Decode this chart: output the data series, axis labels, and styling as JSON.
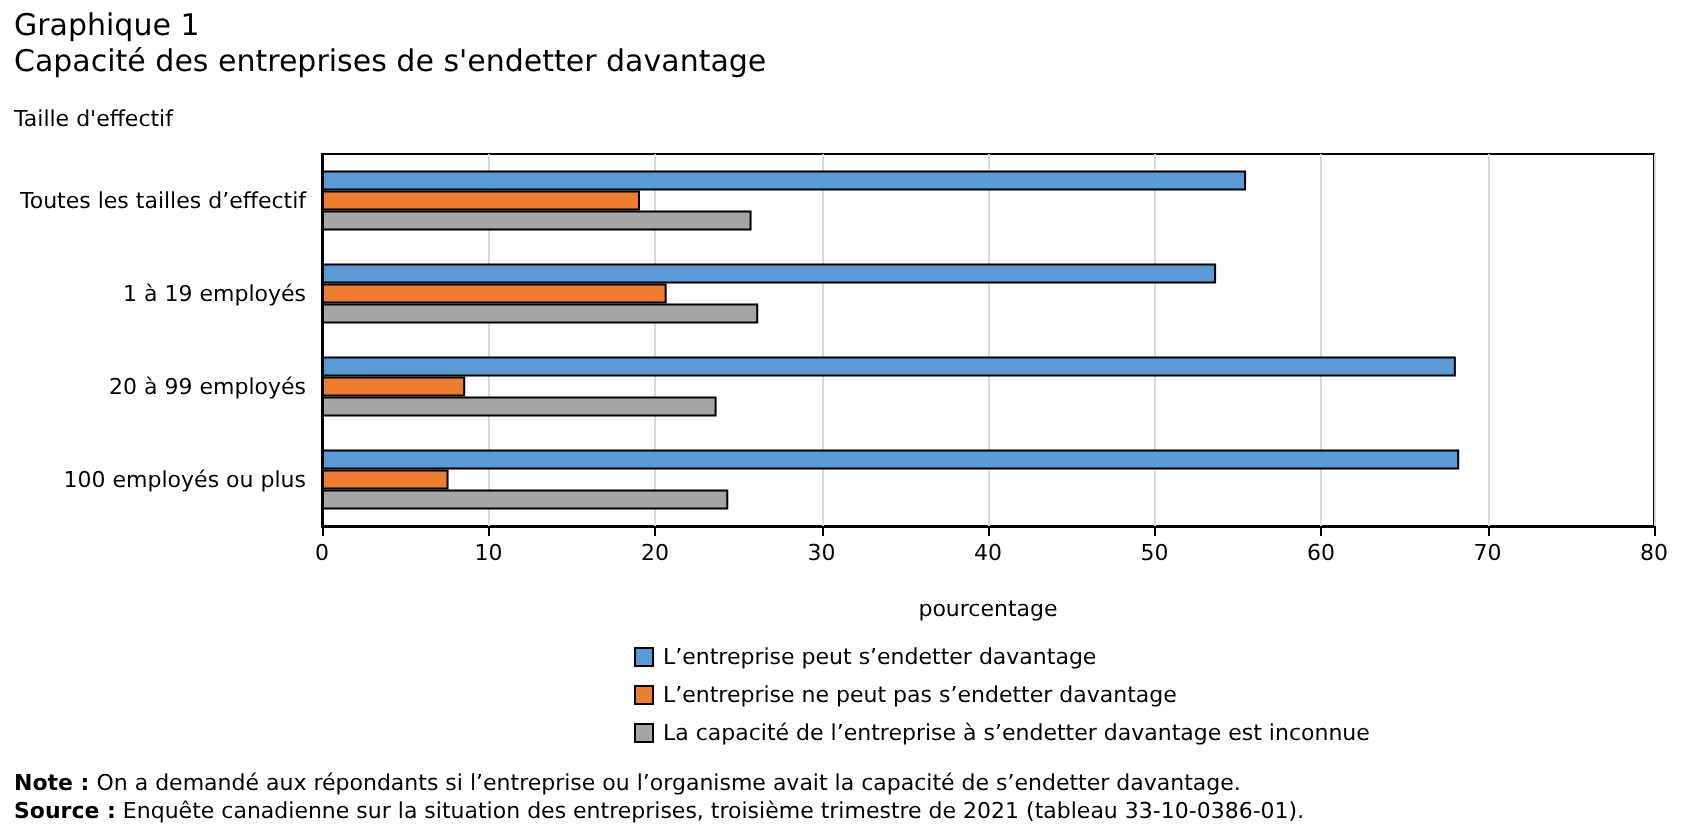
{
  "chart_data": {
    "type": "bar",
    "orientation": "horizontal",
    "title": "Graphique 1",
    "subtitle": "Capacité des entreprises de s'endetter davantage",
    "ylabel": "Taille d'effectif",
    "xlabel": "pourcentage",
    "categories": [
      "Toutes les tailles d’effectif",
      "1 à 19 employés",
      "20 à 99 employés",
      "100 employés ou plus"
    ],
    "series": [
      {
        "name": "L’entreprise peut s’endetter davantage",
        "color": "#5b9bd5",
        "values": [
          55.5,
          53.7,
          68.1,
          68.3
        ]
      },
      {
        "name": "L’entreprise ne peut pas s’endetter davantage",
        "color": "#ed7d31",
        "values": [
          19.1,
          20.7,
          8.6,
          7.6
        ]
      },
      {
        "name": "La capacité de l’entreprise à s’endetter davantage est inconnue",
        "color": "#a5a5a5",
        "values": [
          25.8,
          26.2,
          23.7,
          24.4
        ]
      }
    ],
    "xlim": [
      0,
      80
    ],
    "xticks": [
      0,
      10,
      20,
      30,
      40,
      50,
      60,
      70,
      80
    ],
    "grid": "x",
    "legend": "bottom",
    "annotations": [
      "Note : On a demandé aux répondants si l’entreprise ou l’organisme avait la capacité de s’endetter davantage.",
      "Source : Enquête canadienne sur la situation des entreprises, troisième trimestre de 2021 (tableau 33-10-0386-01)."
    ]
  }
}
